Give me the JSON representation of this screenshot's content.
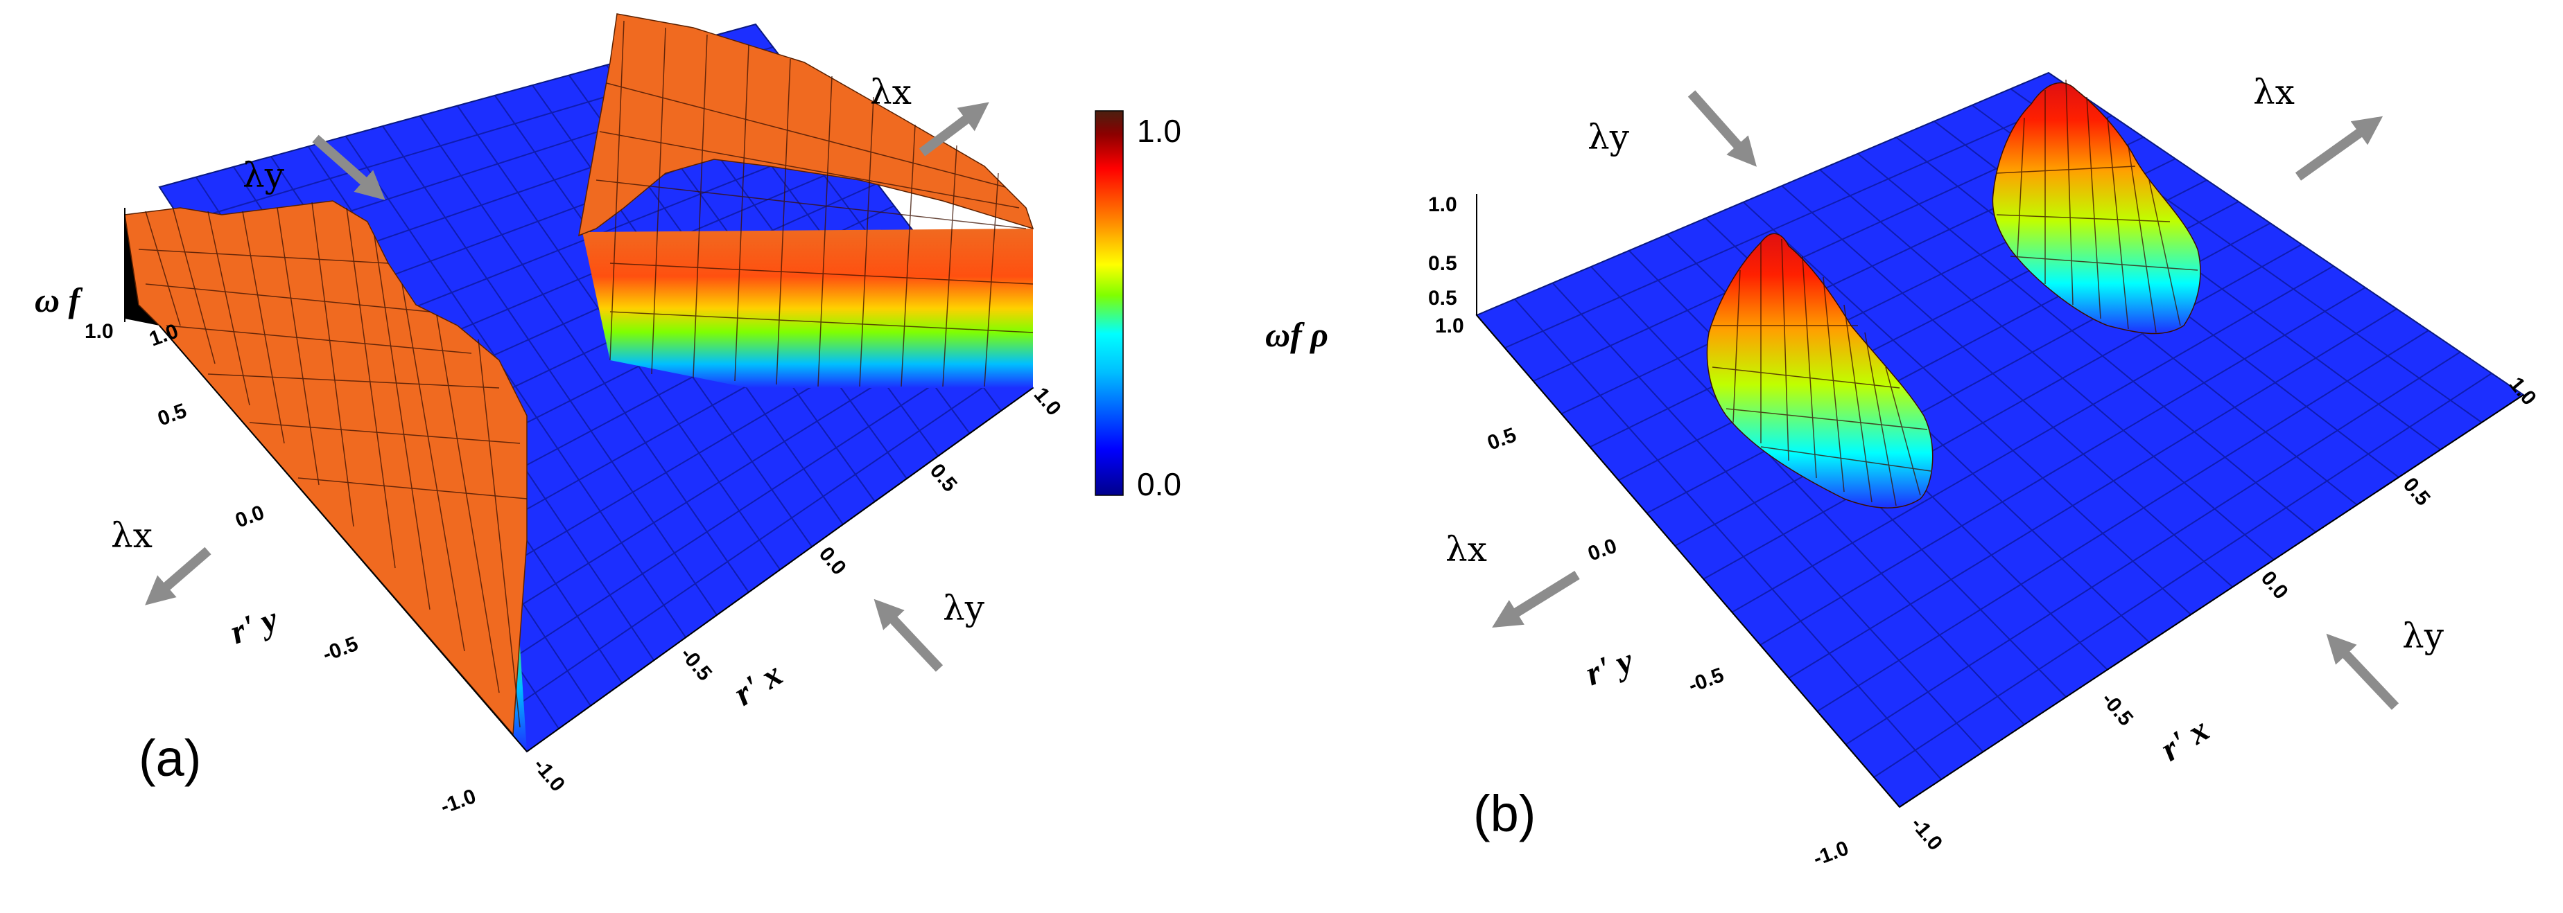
{
  "panels": [
    {
      "label": "(a)",
      "z_label": "ω f",
      "y_label": "r' y",
      "x_label": "r' x",
      "z_ticks": [
        "1.0"
      ],
      "y_ticks": [
        "1.0",
        "0.5",
        "0.0",
        "-0.5",
        "-1.0"
      ],
      "x_ticks": [
        "-1.0",
        "-0.5",
        "0.0",
        "0.5",
        "1.0"
      ],
      "arrows": [
        "λy",
        "λx",
        "λx",
        "λy"
      ]
    },
    {
      "label": "(b)",
      "z_label": "ωf ρ",
      "y_label": "r' y",
      "x_label": "r' x",
      "z_ticks": [
        "1.0",
        "0.5",
        "0.5",
        "1.0"
      ],
      "y_ticks": [
        "0.5",
        "0.0",
        "-0.5",
        "-1.0"
      ],
      "x_ticks": [
        "-1.0",
        "-0.5",
        "0.0",
        "0.5",
        "1.0"
      ],
      "arrows": [
        "λy",
        "λx",
        "λx",
        "λy"
      ]
    }
  ],
  "colorbar": {
    "max_label": "1.0",
    "min_label": "0.0",
    "colors": [
      "#00008b",
      "#0000ff",
      "#00bfff",
      "#00ffff",
      "#7fff00",
      "#ffff00",
      "#ff8000",
      "#ff0000",
      "#8b0000",
      "#4a2010"
    ]
  },
  "colors": {
    "floor": "#1c2fff",
    "surface_high": "#f06a20",
    "arrow": "#8c8c8c"
  }
}
